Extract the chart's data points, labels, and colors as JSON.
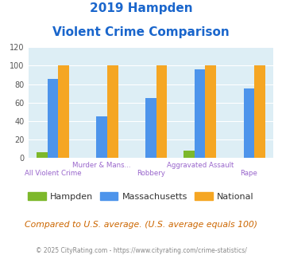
{
  "title_line1": "2019 Hampden",
  "title_line2": "Violent Crime Comparison",
  "categories": [
    "All Violent Crime",
    "Murder & Mans...",
    "Robbery",
    "Aggravated Assault",
    "Rape"
  ],
  "hampden": [
    6,
    0,
    0,
    8,
    0
  ],
  "massachusetts": [
    86,
    45,
    65,
    96,
    75
  ],
  "national": [
    100,
    100,
    100,
    100,
    100
  ],
  "color_hampden": "#7db82b",
  "color_massachusetts": "#4d94eb",
  "color_national": "#f5a623",
  "ylim": [
    0,
    120
  ],
  "yticks": [
    0,
    20,
    40,
    60,
    80,
    100,
    120
  ],
  "bg_color": "#ddeef5",
  "title_color": "#1a66cc",
  "xlabel_color": "#9966cc",
  "footer_text": "Compared to U.S. average. (U.S. average equals 100)",
  "footer_color": "#cc6600",
  "credit_text": "© 2025 CityRating.com - https://www.cityrating.com/crime-statistics/",
  "credit_color": "#888888"
}
